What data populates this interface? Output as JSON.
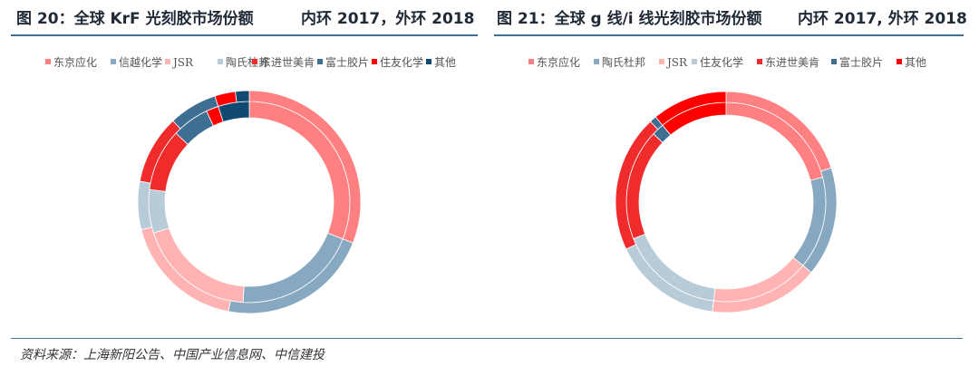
{
  "figures": [
    {
      "title": "图 20：全球 KrF 光刻胶市场份额",
      "subtitle": "内环 2017，外环 2018"
    },
    {
      "title": "图 21：全球 g 线/i 线光刻胶市场份额",
      "subtitle": "内环 2017, 外环 2018"
    }
  ],
  "source": "资料来源：上海新阳公告、中国产业信息网、中信建投",
  "chart_data": [
    {
      "type": "pie",
      "variant": "donut",
      "title": "图 20：全球 KrF 光刻胶市场份额",
      "subtitle": "内环 2017，外环 2018",
      "legend_position": "top",
      "categories": [
        "东京应化",
        "信越化学",
        "JSR",
        "陶氏杜邦",
        "东进世美肯",
        "富士胶片",
        "住友化学",
        "其他"
      ],
      "colors": [
        "#ff8080",
        "#86a8c0",
        "#ffb3b3",
        "#b7cbd9",
        "#ef2b2b",
        "#3f6e93",
        "#ff0000",
        "#104a73"
      ],
      "series": [
        {
          "ring": "inner",
          "year": "2017",
          "values": [
            31,
            20,
            19,
            7,
            10,
            6,
            2,
            5
          ]
        },
        {
          "ring": "outer",
          "year": "2018",
          "values": [
            31,
            22,
            18,
            7,
            10,
            7,
            3,
            2
          ]
        }
      ]
    },
    {
      "type": "pie",
      "variant": "donut",
      "title": "图 21：全球 g 线/i 线光刻胶市场份额",
      "subtitle": "内环 2017, 外环 2018",
      "legend_position": "top",
      "categories": [
        "东京应化",
        "陶氏杜邦",
        "JSR",
        "住友化学",
        "东进世美肯",
        "富士胶片",
        "其他"
      ],
      "colors": [
        "#ff8080",
        "#86a8c0",
        "#ffb3b3",
        "#b7cbd9",
        "#ef2b2b",
        "#3f6e93",
        "#ff0000"
      ],
      "series": [
        {
          "ring": "inner",
          "year": "2017",
          "values": [
            21,
            15,
            16,
            17,
            18,
            2,
            11
          ]
        },
        {
          "ring": "outer",
          "year": "2018",
          "values": [
            20,
            16,
            16,
            16,
            20,
            1,
            11
          ]
        }
      ]
    }
  ]
}
